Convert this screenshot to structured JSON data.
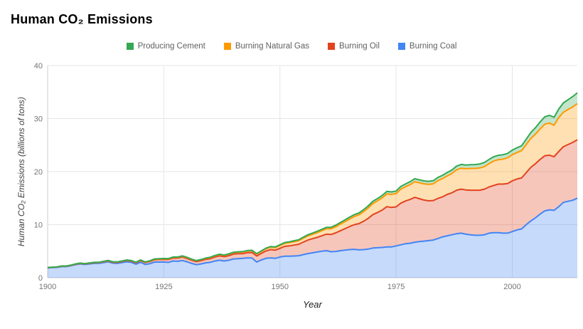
{
  "page": {
    "title": "Human CO₂ Emissions"
  },
  "legend": {
    "items": [
      {
        "label": "Producing Cement",
        "color": "#34a853"
      },
      {
        "label": "Burning Natural Gas",
        "color": "#ff9900"
      },
      {
        "label": "Burning Oil",
        "color": "#e2431e"
      },
      {
        "label": "Burning Coal",
        "color": "#4285f4"
      }
    ]
  },
  "axes": {
    "x_title": "Year",
    "y_title": "Human CO₂ Emissions (billions of tons)",
    "y_tick_labels": [
      "0",
      "10",
      "20",
      "30",
      "40"
    ],
    "x_tick_labels": [
      "1900",
      "1925",
      "1950",
      "1975",
      "2000"
    ]
  },
  "chart_data": {
    "type": "area",
    "stacked": true,
    "title": "Human CO₂ Emissions",
    "xlabel": "Year",
    "ylabel": "Human CO₂ Emissions (billions of tons)",
    "legend_position": "top",
    "grid": true,
    "fill_opacity": 0.3,
    "x_start": 1900,
    "x_end": 2014,
    "x_step": 1,
    "ylim": [
      0,
      40
    ],
    "y_ticks": [
      0,
      10,
      20,
      30,
      40
    ],
    "x_ticks": [
      1900,
      1925,
      1950,
      1975,
      2000
    ],
    "units": "billions of tons CO₂ per year",
    "stack_order_note": "series listed bottom of stack to top",
    "series": [
      {
        "name": "Burning Coal",
        "color": "#4285f4",
        "values": [
          1.85,
          1.9,
          1.95,
          2.1,
          2.1,
          2.25,
          2.45,
          2.6,
          2.5,
          2.6,
          2.7,
          2.7,
          2.85,
          3.0,
          2.75,
          2.7,
          2.85,
          3.0,
          2.9,
          2.55,
          2.9,
          2.5,
          2.65,
          2.95,
          2.95,
          2.95,
          2.9,
          3.15,
          3.1,
          3.25,
          3.0,
          2.7,
          2.45,
          2.6,
          2.8,
          2.9,
          3.15,
          3.3,
          3.15,
          3.3,
          3.55,
          3.6,
          3.65,
          3.75,
          3.7,
          2.95,
          3.35,
          3.65,
          3.75,
          3.65,
          3.9,
          4.05,
          4.05,
          4.1,
          4.15,
          4.35,
          4.55,
          4.7,
          4.85,
          5.0,
          5.1,
          4.9,
          4.95,
          5.1,
          5.2,
          5.3,
          5.35,
          5.25,
          5.3,
          5.4,
          5.6,
          5.65,
          5.7,
          5.8,
          5.8,
          6.0,
          6.2,
          6.4,
          6.5,
          6.7,
          6.8,
          6.9,
          7.0,
          7.1,
          7.4,
          7.7,
          7.9,
          8.1,
          8.3,
          8.4,
          8.2,
          8.1,
          8.0,
          8.0,
          8.1,
          8.4,
          8.5,
          8.5,
          8.4,
          8.4,
          8.7,
          9.0,
          9.2,
          10.0,
          10.7,
          11.3,
          12.0,
          12.6,
          12.8,
          12.7,
          13.4,
          14.2,
          14.4,
          14.6,
          15.0
        ]
      },
      {
        "name": "Burning Oil",
        "color": "#e2431e",
        "values": [
          0.05,
          0.06,
          0.06,
          0.07,
          0.07,
          0.08,
          0.09,
          0.1,
          0.1,
          0.11,
          0.13,
          0.14,
          0.15,
          0.17,
          0.18,
          0.19,
          0.21,
          0.23,
          0.24,
          0.26,
          0.33,
          0.36,
          0.4,
          0.45,
          0.48,
          0.5,
          0.53,
          0.57,
          0.6,
          0.65,
          0.62,
          0.6,
          0.58,
          0.62,
          0.66,
          0.7,
          0.76,
          0.82,
          0.82,
          0.86,
          0.9,
          0.92,
          0.9,
          0.98,
          1.05,
          1.15,
          1.25,
          1.4,
          1.55,
          1.55,
          1.65,
          1.85,
          1.95,
          2.05,
          2.15,
          2.35,
          2.55,
          2.65,
          2.75,
          2.9,
          3.1,
          3.25,
          3.5,
          3.75,
          4.05,
          4.35,
          4.65,
          4.95,
          5.35,
          5.8,
          6.3,
          6.65,
          7.05,
          7.6,
          7.45,
          7.35,
          7.85,
          8.05,
          8.25,
          8.45,
          8.1,
          7.75,
          7.5,
          7.45,
          7.55,
          7.55,
          7.8,
          7.9,
          8.2,
          8.3,
          8.35,
          8.4,
          8.5,
          8.5,
          8.6,
          8.7,
          8.9,
          9.15,
          9.25,
          9.35,
          9.55,
          9.6,
          9.6,
          9.8,
          10.1,
          10.2,
          10.3,
          10.4,
          10.3,
          10.1,
          10.4,
          10.5,
          10.7,
          10.9,
          11.0
        ]
      },
      {
        "name": "Burning Natural Gas",
        "color": "#ff9900",
        "values": [
          0.02,
          0.02,
          0.02,
          0.03,
          0.03,
          0.03,
          0.04,
          0.04,
          0.04,
          0.05,
          0.05,
          0.05,
          0.06,
          0.06,
          0.06,
          0.07,
          0.07,
          0.08,
          0.08,
          0.08,
          0.09,
          0.09,
          0.1,
          0.11,
          0.12,
          0.12,
          0.13,
          0.14,
          0.15,
          0.16,
          0.17,
          0.16,
          0.16,
          0.17,
          0.19,
          0.2,
          0.22,
          0.24,
          0.24,
          0.26,
          0.28,
          0.29,
          0.3,
          0.32,
          0.34,
          0.36,
          0.38,
          0.42,
          0.46,
          0.48,
          0.52,
          0.57,
          0.6,
          0.63,
          0.66,
          0.73,
          0.78,
          0.84,
          0.9,
          0.96,
          1.02,
          1.08,
          1.16,
          1.24,
          1.32,
          1.43,
          1.54,
          1.65,
          1.8,
          1.95,
          2.1,
          2.2,
          2.3,
          2.4,
          2.45,
          2.5,
          2.65,
          2.7,
          2.8,
          2.95,
          3.0,
          3.05,
          3.1,
          3.15,
          3.35,
          3.45,
          3.5,
          3.65,
          3.85,
          3.95,
          4.0,
          4.1,
          4.1,
          4.2,
          4.25,
          4.4,
          4.6,
          4.6,
          4.7,
          4.85,
          4.95,
          5.0,
          5.15,
          5.3,
          5.45,
          5.6,
          5.75,
          5.95,
          6.05,
          5.95,
          6.4,
          6.5,
          6.6,
          6.7,
          6.8
        ]
      },
      {
        "name": "Producing Cement",
        "color": "#34a853",
        "values": [
          0.01,
          0.01,
          0.01,
          0.01,
          0.01,
          0.02,
          0.02,
          0.02,
          0.02,
          0.02,
          0.02,
          0.02,
          0.03,
          0.03,
          0.03,
          0.03,
          0.03,
          0.03,
          0.03,
          0.03,
          0.03,
          0.03,
          0.04,
          0.04,
          0.04,
          0.05,
          0.05,
          0.05,
          0.06,
          0.06,
          0.06,
          0.05,
          0.05,
          0.05,
          0.06,
          0.06,
          0.07,
          0.07,
          0.07,
          0.08,
          0.08,
          0.08,
          0.08,
          0.08,
          0.08,
          0.08,
          0.09,
          0.1,
          0.12,
          0.13,
          0.15,
          0.16,
          0.17,
          0.18,
          0.19,
          0.21,
          0.22,
          0.23,
          0.25,
          0.26,
          0.27,
          0.28,
          0.29,
          0.31,
          0.33,
          0.34,
          0.35,
          0.36,
          0.38,
          0.4,
          0.42,
          0.43,
          0.45,
          0.47,
          0.47,
          0.48,
          0.5,
          0.52,
          0.54,
          0.56,
          0.55,
          0.56,
          0.57,
          0.58,
          0.6,
          0.62,
          0.64,
          0.66,
          0.69,
          0.7,
          0.7,
          0.72,
          0.73,
          0.75,
          0.77,
          0.79,
          0.81,
          0.83,
          0.83,
          0.84,
          0.85,
          0.88,
          0.92,
          1.0,
          1.1,
          1.2,
          1.3,
          1.4,
          1.45,
          1.5,
          1.6,
          1.75,
          1.85,
          1.95,
          2.05
        ]
      }
    ],
    "colors": {
      "grid": "#e6e6e6",
      "axis_line": "#cccccc",
      "tick_label": "#757575"
    }
  }
}
